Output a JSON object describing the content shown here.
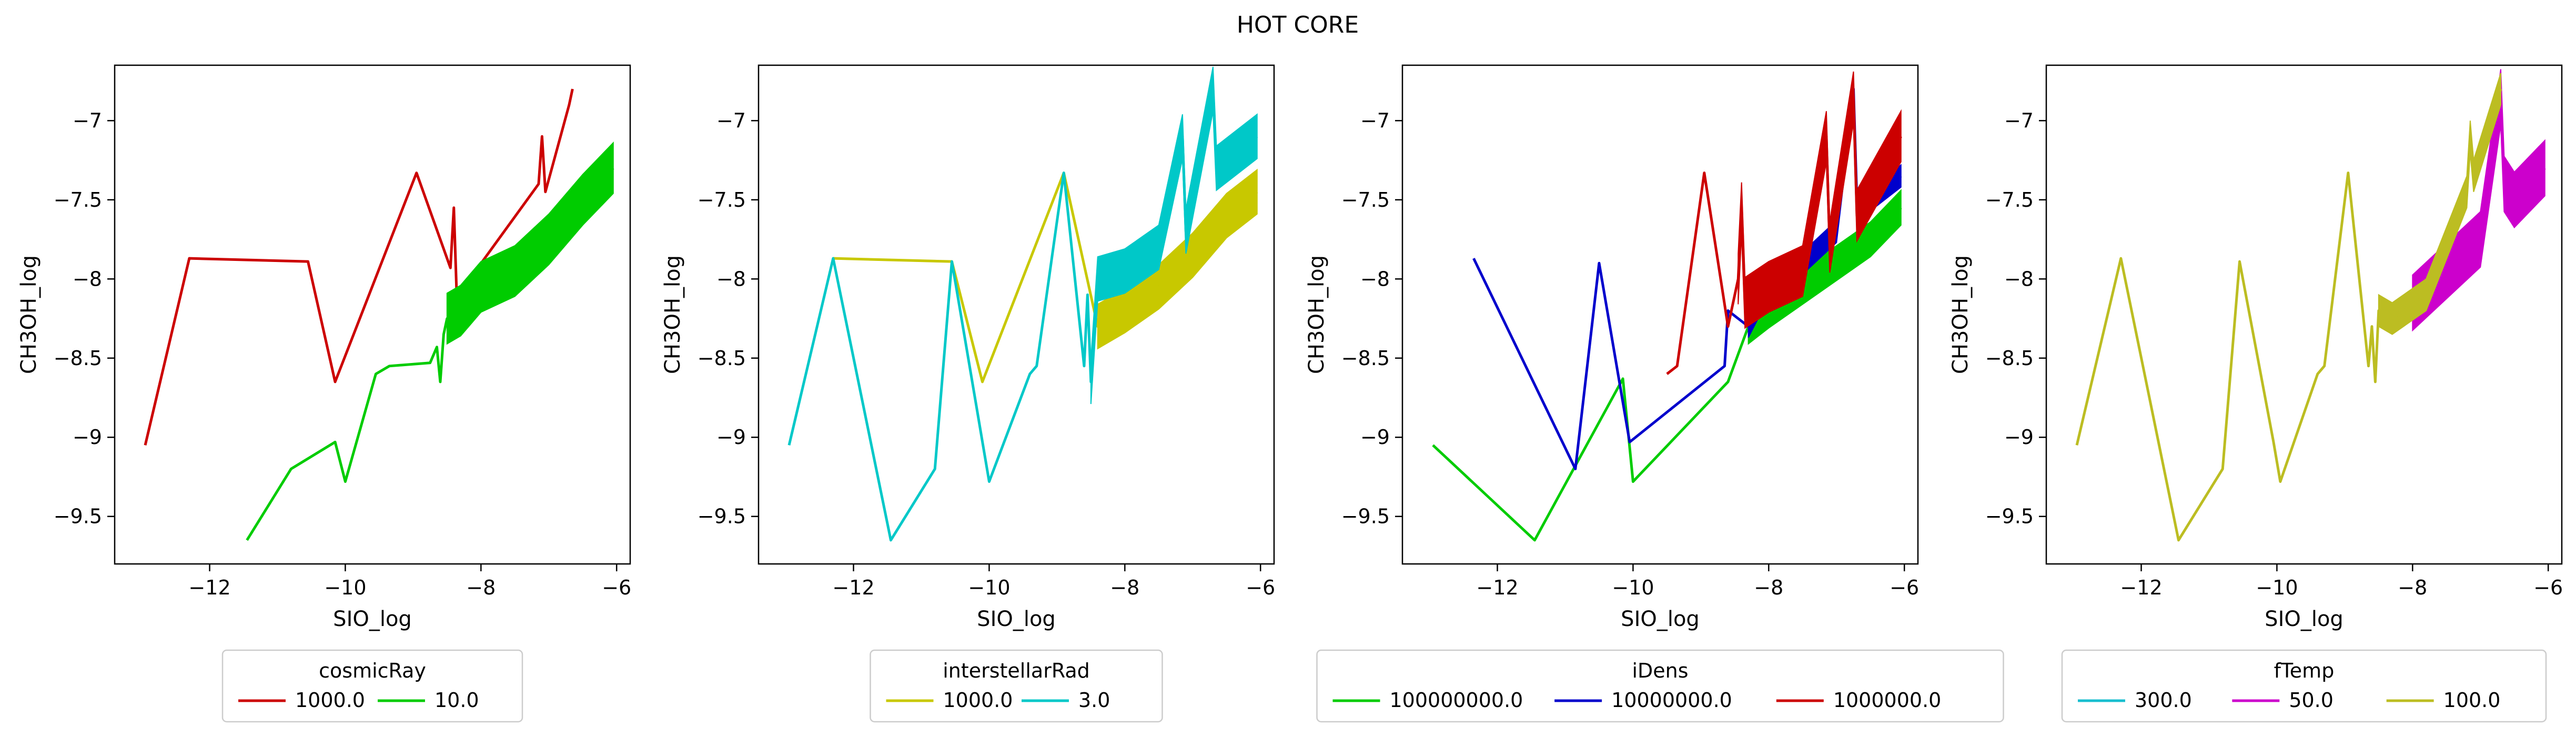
{
  "figure": {
    "title": "HOT CORE"
  },
  "chart_data": [
    {
      "type": "line",
      "xlabel": "SIO_log",
      "ylabel": "CH3OH_log",
      "xlim": [
        -13.4,
        -5.8
      ],
      "ylim": [
        -9.8,
        -6.65
      ],
      "xticks": [
        -12,
        -10,
        -8,
        -6
      ],
      "yticks": [
        -9.5,
        -9.0,
        -8.5,
        -8.0,
        -7.5,
        -7.0
      ],
      "legend": {
        "title": "cosmicRay",
        "position": "bottom-center",
        "columns": 2
      },
      "series": [
        {
          "name": "1000.0",
          "color": "#cc0000",
          "x": [
            -12.95,
            -12.3,
            -10.55,
            -10.15,
            -8.95,
            -8.45,
            -8.4,
            -8.35,
            -8.3,
            -8.25,
            -7.15,
            -7.1,
            -7.05,
            -6.7,
            -6.65
          ],
          "y": [
            -9.05,
            -7.87,
            -7.89,
            -8.65,
            -7.33,
            -7.93,
            -7.55,
            -8.2,
            -8.1,
            -8.05,
            -7.4,
            -7.1,
            -7.45,
            -6.9,
            -6.8
          ]
        },
        {
          "name": "10.0",
          "color": "#00cc00",
          "band": true,
          "x": [
            -11.45,
            -10.8,
            -10.15,
            -10.0,
            -9.55,
            -9.35,
            -8.75,
            -8.65,
            -8.6,
            -8.55,
            -8.5,
            -8.3,
            -8.0,
            -7.5,
            -7.0,
            -6.5,
            -6.05
          ],
          "y": [
            -9.65,
            -9.2,
            -9.03,
            -9.28,
            -8.6,
            -8.55,
            -8.53,
            -8.43,
            -8.65,
            -8.35,
            -8.25,
            -8.2,
            -8.05,
            -7.95,
            -7.75,
            -7.5,
            -7.3
          ],
          "band_width": 0.32
        }
      ]
    },
    {
      "type": "line",
      "xlabel": "SIO_log",
      "ylabel": "CH3OH_log",
      "xlim": [
        -13.4,
        -5.8
      ],
      "ylim": [
        -9.8,
        -6.65
      ],
      "xticks": [
        -12,
        -10,
        -8,
        -6
      ],
      "yticks": [
        -9.5,
        -9.0,
        -8.5,
        -8.0,
        -7.5,
        -7.0
      ],
      "legend": {
        "title": "interstellarRad",
        "position": "bottom-center",
        "columns": 2
      },
      "series": [
        {
          "name": "1000.0",
          "color": "#c8c800",
          "x": [
            -12.3,
            -10.55,
            -10.1,
            -8.9,
            -8.4,
            -8.0,
            -7.5,
            -7.0,
            -6.5,
            -6.05
          ],
          "y": [
            -7.87,
            -7.89,
            -8.65,
            -7.33,
            -8.3,
            -8.2,
            -8.05,
            -7.85,
            -7.6,
            -7.45
          ],
          "band_width": 0.28
        },
        {
          "name": "3.0",
          "color": "#00c8c8",
          "x": [
            -12.95,
            -12.3,
            -11.45,
            -10.8,
            -10.55,
            -10.0,
            -9.4,
            -9.3,
            -8.9,
            -8.6,
            -8.55,
            -8.5,
            -8.4,
            -8.0,
            -7.5,
            -7.15,
            -7.1,
            -6.7,
            -6.65,
            -6.05
          ],
          "y": [
            -9.05,
            -7.87,
            -9.65,
            -9.2,
            -7.89,
            -9.28,
            -8.6,
            -8.55,
            -7.33,
            -8.55,
            -8.1,
            -8.65,
            -8.0,
            -7.95,
            -7.8,
            -7.1,
            -7.7,
            -6.8,
            -7.3,
            -7.1
          ],
          "band_width": 0.28
        }
      ]
    },
    {
      "type": "line",
      "xlabel": "SIO_log",
      "ylabel": "CH3OH_log",
      "xlim": [
        -13.4,
        -5.8
      ],
      "ylim": [
        -9.8,
        -6.65
      ],
      "xticks": [
        -12,
        -10,
        -8,
        -6
      ],
      "yticks": [
        -9.5,
        -9.0,
        -8.5,
        -8.0,
        -7.5,
        -7.0
      ],
      "legend": {
        "title": "iDens",
        "position": "bottom-center",
        "columns": 3
      },
      "series": [
        {
          "name": "100000000.0",
          "color": "#00cc00",
          "x": [
            -12.95,
            -11.45,
            -10.15,
            -10.0,
            -8.6,
            -8.3,
            -8.0,
            -7.5,
            -7.0,
            -6.5,
            -6.05
          ],
          "y": [
            -9.05,
            -9.65,
            -8.63,
            -9.28,
            -8.65,
            -8.3,
            -8.2,
            -8.05,
            -7.9,
            -7.75,
            -7.55
          ],
          "band_width": 0.22
        },
        {
          "name": "10000000.0",
          "color": "#0000cc",
          "x": [
            -12.35,
            -10.85,
            -10.5,
            -10.05,
            -8.65,
            -8.6,
            -8.3,
            -8.0,
            -7.5,
            -7.0,
            -6.75,
            -6.7,
            -6.65,
            -6.05
          ],
          "y": [
            -7.87,
            -9.2,
            -7.9,
            -9.03,
            -8.55,
            -8.2,
            -8.3,
            -8.05,
            -7.9,
            -7.7,
            -6.8,
            -7.5,
            -7.55,
            -7.35
          ],
          "band_width": 0.14
        },
        {
          "name": "1000000.0",
          "color": "#cc0000",
          "x": [
            -9.5,
            -9.35,
            -8.95,
            -8.6,
            -8.45,
            -8.4,
            -8.35,
            -8.0,
            -7.5,
            -7.15,
            -7.1,
            -6.75,
            -6.7,
            -6.05
          ],
          "y": [
            -8.6,
            -8.55,
            -7.33,
            -8.3,
            -8.0,
            -7.55,
            -8.15,
            -8.05,
            -7.95,
            -7.1,
            -7.8,
            -6.85,
            -7.6,
            -7.1
          ],
          "band_width": 0.32
        }
      ]
    },
    {
      "type": "line",
      "xlabel": "SIO_log",
      "ylabel": "CH3OH_log",
      "xlim": [
        -13.4,
        -5.8
      ],
      "ylim": [
        -9.8,
        -6.65
      ],
      "xticks": [
        -12,
        -10,
        -8,
        -6
      ],
      "yticks": [
        -9.5,
        -9.0,
        -8.5,
        -8.0,
        -7.5,
        -7.0
      ],
      "legend": {
        "title": "fTemp",
        "position": "bottom-center",
        "columns": 3
      },
      "series": [
        {
          "name": "300.0",
          "color": "#17becf",
          "x": [
            -8.3,
            -8.1,
            -7.9
          ],
          "y": [
            -8.25,
            -8.2,
            -8.15
          ]
        },
        {
          "name": "50.0",
          "color": "#cc00cc",
          "x": [
            -8.0,
            -7.5,
            -7.0,
            -6.7,
            -6.65,
            -6.5,
            -6.05
          ],
          "y": [
            -8.15,
            -7.95,
            -7.75,
            -6.85,
            -7.4,
            -7.5,
            -7.3
          ],
          "band_width": 0.35
        },
        {
          "name": "100.0",
          "color": "#bcbd22",
          "x": [
            -12.95,
            -12.3,
            -11.45,
            -10.8,
            -10.55,
            -10.05,
            -9.95,
            -9.4,
            -9.3,
            -8.95,
            -8.65,
            -8.6,
            -8.55,
            -8.5,
            -8.3,
            -7.8,
            -7.2,
            -7.15,
            -7.1,
            -6.7
          ],
          "y": [
            -9.05,
            -7.87,
            -9.65,
            -9.2,
            -7.89,
            -9.03,
            -9.28,
            -8.6,
            -8.55,
            -7.33,
            -8.55,
            -8.3,
            -8.65,
            -8.2,
            -8.25,
            -8.1,
            -7.45,
            -7.1,
            -7.35,
            -6.8
          ],
          "band_width": 0.2
        }
      ]
    }
  ]
}
